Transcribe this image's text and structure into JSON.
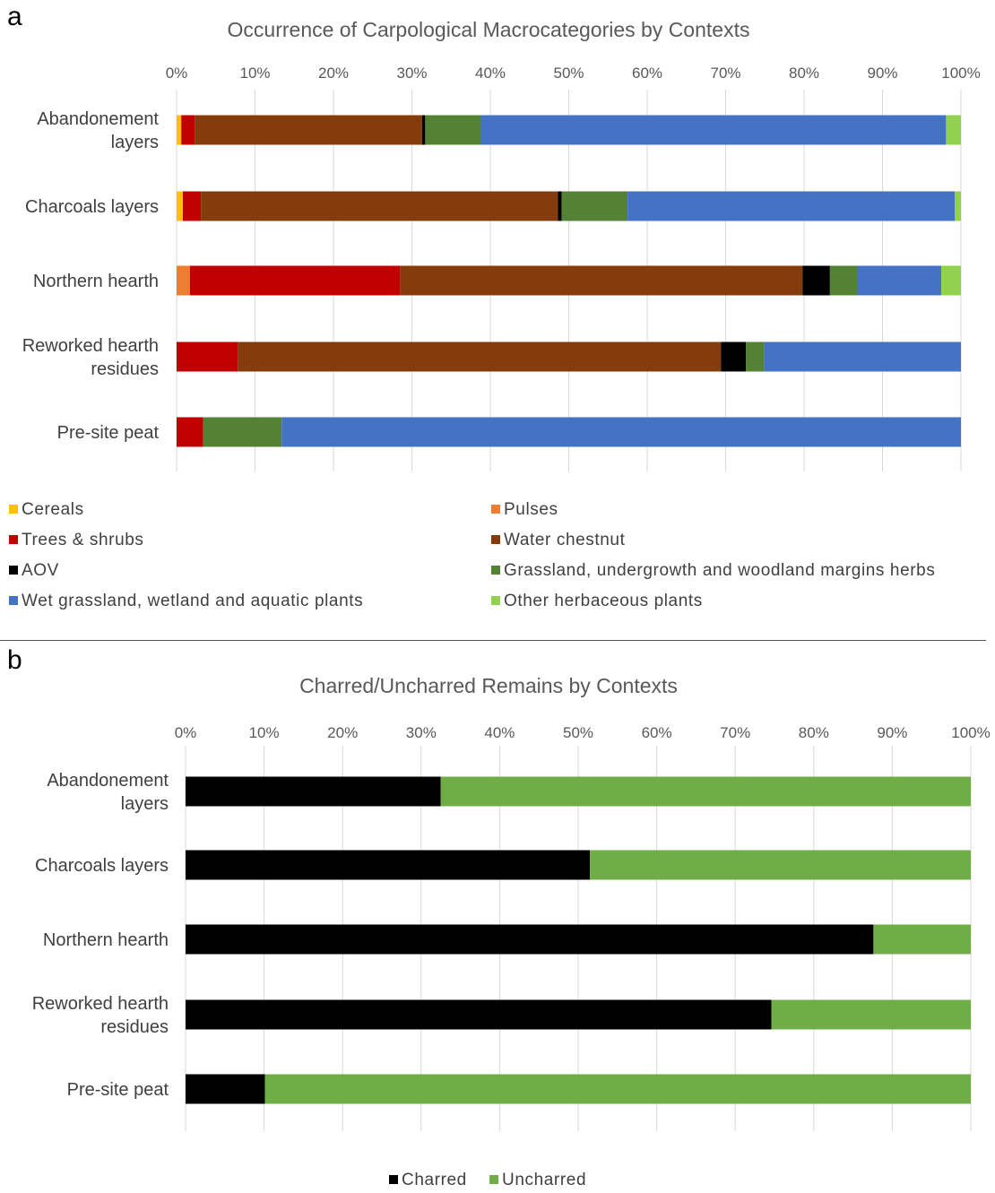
{
  "chart_data": [
    {
      "panel": "a",
      "type": "bar",
      "stacked": "percent",
      "orientation": "horizontal",
      "title": "Occurrence of Carpological Macrocategories by Contexts",
      "categories": [
        "Abandonement layers",
        "Charcoals layers",
        "Northern hearth",
        "Reworked hearth residues",
        "Pre-site peat"
      ],
      "category_lines": [
        [
          "Abandonement",
          "layers"
        ],
        [
          "Charcoals layers"
        ],
        [
          "Northern hearth"
        ],
        [
          "Reworked hearth",
          "residues"
        ],
        [
          "Pre-site peat"
        ]
      ],
      "xlim": [
        0,
        100
      ],
      "xticks": [
        "0%",
        "10%",
        "20%",
        "30%",
        "40%",
        "50%",
        "60%",
        "70%",
        "80%",
        "90%",
        "100%"
      ],
      "grid": true,
      "legend_position": "bottom",
      "series": [
        {
          "name": "Cereals",
          "color": "#ffc000",
          "values": [
            0.6,
            0.8,
            0,
            0,
            0
          ]
        },
        {
          "name": "Pulses",
          "color": "#ed7d31",
          "values": [
            0,
            0,
            1.7,
            0,
            0
          ]
        },
        {
          "name": "Trees & shrubs",
          "color": "#c00000",
          "values": [
            1.7,
            2.3,
            26.8,
            7.8,
            3.4
          ]
        },
        {
          "name": "Water chestnut",
          "color": "#843c0c",
          "values": [
            29.0,
            45.5,
            51.3,
            61.6,
            0
          ]
        },
        {
          "name": "AOV",
          "color": "#000000",
          "values": [
            0.4,
            0.5,
            3.5,
            3.2,
            0
          ]
        },
        {
          "name": "Grassland, undergrowth and woodland margins herbs",
          "color": "#548235",
          "values": [
            7.1,
            8.4,
            3.5,
            2.3,
            10.0
          ]
        },
        {
          "name": "Wet grassland, wetland and aquatic plants",
          "color": "#4472c4",
          "values": [
            59.3,
            41.7,
            10.7,
            25.1,
            86.6
          ]
        },
        {
          "name": "Other herbaceous plants",
          "color": "#92d050",
          "values": [
            1.9,
            0.8,
            2.5,
            0,
            0
          ]
        }
      ]
    },
    {
      "panel": "b",
      "type": "bar",
      "stacked": "percent",
      "orientation": "horizontal",
      "title": "Charred/Uncharred Remains by Contexts",
      "categories": [
        "Abandonement layers",
        "Charcoals layers",
        "Northern hearth",
        "Reworked hearth residues",
        "Pre-site peat"
      ],
      "category_lines": [
        [
          "Abandonement",
          "layers"
        ],
        [
          "Charcoals layers"
        ],
        [
          "Northern hearth"
        ],
        [
          "Reworked hearth",
          "residues"
        ],
        [
          "Pre-site peat"
        ]
      ],
      "xlim": [
        0,
        100
      ],
      "xticks": [
        "0%",
        "10%",
        "20%",
        "30%",
        "40%",
        "50%",
        "60%",
        "70%",
        "80%",
        "90%",
        "100%"
      ],
      "grid": true,
      "legend_position": "bottom",
      "series": [
        {
          "name": "Charred",
          "color": "#000000",
          "values": [
            32.5,
            51.5,
            87.6,
            74.6,
            10.1
          ]
        },
        {
          "name": "Uncharred",
          "color": "#70ad47",
          "values": [
            67.5,
            48.5,
            12.4,
            25.4,
            89.9
          ]
        }
      ]
    }
  ],
  "panels": {
    "a": {
      "letter": "a"
    },
    "b": {
      "letter": "b"
    }
  }
}
